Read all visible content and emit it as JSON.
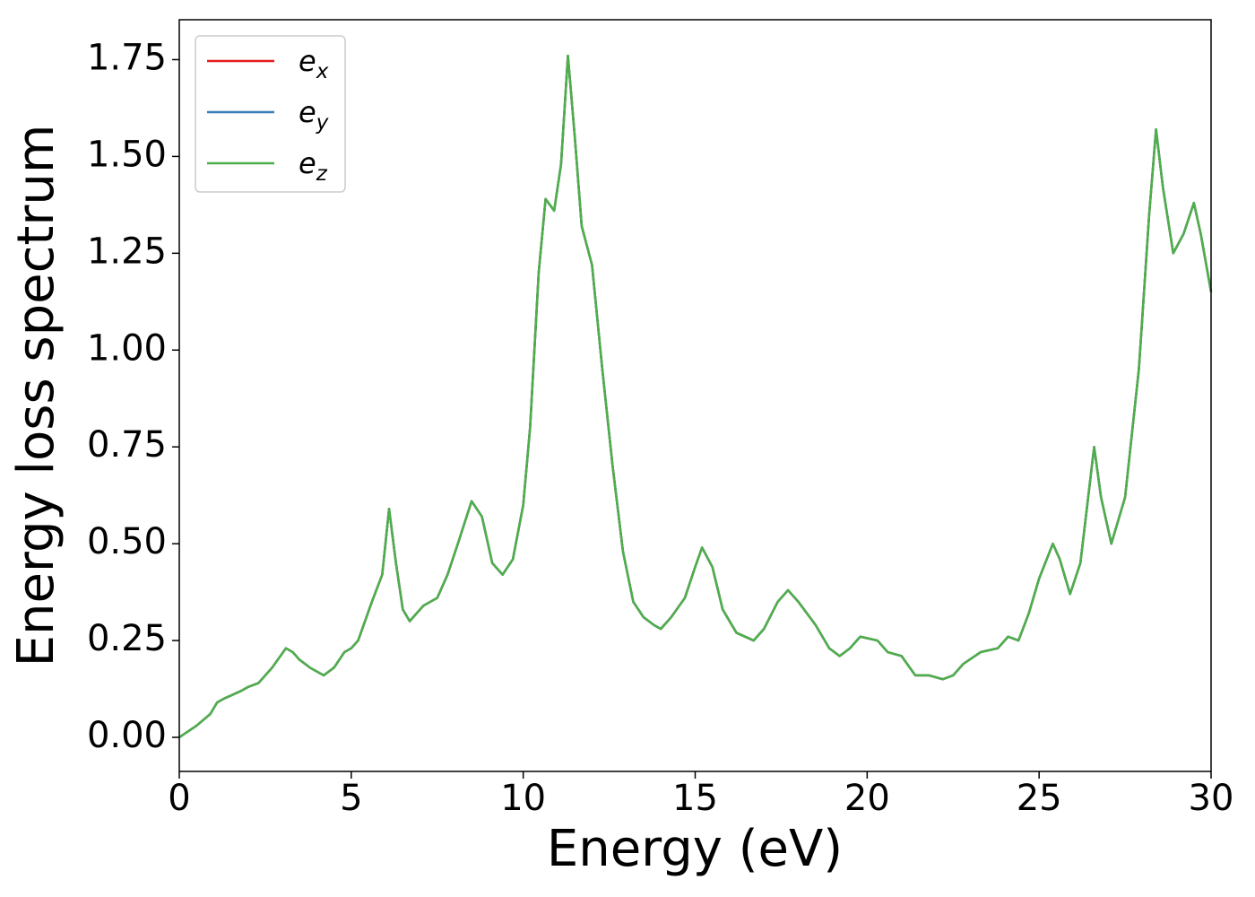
{
  "chart_data": {
    "type": "line",
    "xlabel": "Energy (eV)",
    "ylabel": "Energy loss spectrum",
    "x": [
      0,
      0.5,
      0.9,
      1.1,
      1.3,
      1.8,
      2.0,
      2.3,
      2.7,
      3.1,
      3.3,
      3.5,
      3.8,
      4.2,
      4.5,
      4.8,
      5.0,
      5.2,
      5.6,
      5.9,
      6.1,
      6.3,
      6.5,
      6.7,
      6.9,
      7.1,
      7.5,
      7.8,
      8.1,
      8.5,
      8.8,
      9.1,
      9.4,
      9.7,
      10.0,
      10.2,
      10.45,
      10.65,
      10.9,
      11.1,
      11.3,
      11.5,
      11.7,
      12.0,
      12.3,
      12.6,
      12.9,
      13.2,
      13.5,
      13.8,
      14.0,
      14.3,
      14.7,
      15.0,
      15.2,
      15.5,
      15.8,
      16.2,
      16.7,
      17.0,
      17.4,
      17.7,
      18.0,
      18.5,
      18.9,
      19.2,
      19.5,
      19.8,
      20.3,
      20.6,
      21.0,
      21.4,
      21.8,
      22.2,
      22.5,
      22.8,
      23.3,
      23.8,
      24.1,
      24.4,
      24.7,
      25.0,
      25.4,
      25.6,
      25.9,
      26.2,
      26.6,
      26.8,
      27.1,
      27.5,
      27.9,
      28.2,
      28.4,
      28.6,
      28.9,
      29.2,
      29.5,
      29.7,
      30.0
    ],
    "series": [
      {
        "name": "ex",
        "color": "#e41a1c",
        "values": [
          0.0,
          0.03,
          0.06,
          0.09,
          0.1,
          0.12,
          0.13,
          0.14,
          0.18,
          0.23,
          0.22,
          0.2,
          0.18,
          0.16,
          0.18,
          0.22,
          0.23,
          0.25,
          0.35,
          0.42,
          0.59,
          0.45,
          0.33,
          0.3,
          0.32,
          0.34,
          0.36,
          0.42,
          0.5,
          0.61,
          0.57,
          0.45,
          0.42,
          0.46,
          0.6,
          0.8,
          1.2,
          1.39,
          1.36,
          1.48,
          1.76,
          1.55,
          1.32,
          1.22,
          0.95,
          0.7,
          0.48,
          0.35,
          0.31,
          0.29,
          0.28,
          0.31,
          0.36,
          0.44,
          0.49,
          0.44,
          0.33,
          0.27,
          0.25,
          0.28,
          0.35,
          0.38,
          0.35,
          0.29,
          0.23,
          0.21,
          0.23,
          0.26,
          0.25,
          0.22,
          0.21,
          0.16,
          0.16,
          0.15,
          0.16,
          0.19,
          0.22,
          0.23,
          0.26,
          0.25,
          0.32,
          0.41,
          0.5,
          0.46,
          0.37,
          0.45,
          0.75,
          0.62,
          0.5,
          0.62,
          0.95,
          1.35,
          1.57,
          1.42,
          1.25,
          1.3,
          1.38,
          1.3,
          1.15
        ]
      },
      {
        "name": "ey",
        "color": "#377eb8",
        "values": [
          0.0,
          0.03,
          0.06,
          0.09,
          0.1,
          0.12,
          0.13,
          0.14,
          0.18,
          0.23,
          0.22,
          0.2,
          0.18,
          0.16,
          0.18,
          0.22,
          0.23,
          0.25,
          0.35,
          0.42,
          0.59,
          0.45,
          0.33,
          0.3,
          0.32,
          0.34,
          0.36,
          0.42,
          0.5,
          0.61,
          0.57,
          0.45,
          0.42,
          0.46,
          0.6,
          0.8,
          1.2,
          1.39,
          1.36,
          1.48,
          1.76,
          1.55,
          1.32,
          1.22,
          0.95,
          0.7,
          0.48,
          0.35,
          0.31,
          0.29,
          0.28,
          0.31,
          0.36,
          0.44,
          0.49,
          0.44,
          0.33,
          0.27,
          0.25,
          0.28,
          0.35,
          0.38,
          0.35,
          0.29,
          0.23,
          0.21,
          0.23,
          0.26,
          0.25,
          0.22,
          0.21,
          0.16,
          0.16,
          0.15,
          0.16,
          0.19,
          0.22,
          0.23,
          0.26,
          0.25,
          0.32,
          0.41,
          0.5,
          0.46,
          0.37,
          0.45,
          0.75,
          0.62,
          0.5,
          0.62,
          0.95,
          1.35,
          1.57,
          1.42,
          1.25,
          1.3,
          1.38,
          1.3,
          1.15
        ]
      },
      {
        "name": "ez",
        "color": "#4daf4a",
        "values": [
          0.0,
          0.03,
          0.06,
          0.09,
          0.1,
          0.12,
          0.13,
          0.14,
          0.18,
          0.23,
          0.22,
          0.2,
          0.18,
          0.16,
          0.18,
          0.22,
          0.23,
          0.25,
          0.35,
          0.42,
          0.59,
          0.45,
          0.33,
          0.3,
          0.32,
          0.34,
          0.36,
          0.42,
          0.5,
          0.61,
          0.57,
          0.45,
          0.42,
          0.46,
          0.6,
          0.8,
          1.2,
          1.39,
          1.36,
          1.48,
          1.76,
          1.55,
          1.32,
          1.22,
          0.95,
          0.7,
          0.48,
          0.35,
          0.31,
          0.29,
          0.28,
          0.31,
          0.36,
          0.44,
          0.49,
          0.44,
          0.33,
          0.27,
          0.25,
          0.28,
          0.35,
          0.38,
          0.35,
          0.29,
          0.23,
          0.21,
          0.23,
          0.26,
          0.25,
          0.22,
          0.21,
          0.16,
          0.16,
          0.15,
          0.16,
          0.19,
          0.22,
          0.23,
          0.26,
          0.25,
          0.32,
          0.41,
          0.5,
          0.46,
          0.37,
          0.45,
          0.75,
          0.62,
          0.5,
          0.62,
          0.95,
          1.35,
          1.57,
          1.42,
          1.25,
          1.3,
          1.38,
          1.3,
          1.15
        ]
      }
    ],
    "xlim": [
      0,
      30
    ],
    "xticks": [
      0,
      5,
      10,
      15,
      20,
      25,
      30
    ],
    "ylim": [
      -0.088,
      1.853
    ],
    "yticks": [
      {
        "value": 0,
        "label": "0.00"
      },
      {
        "value": 0.25,
        "label": "0.25"
      },
      {
        "value": 0.5,
        "label": "0.50"
      },
      {
        "value": 0.75,
        "label": "0.75"
      },
      {
        "value": 1,
        "label": "1.00"
      },
      {
        "value": 1.25,
        "label": "1.25"
      },
      {
        "value": 1.5,
        "label": "1.50"
      },
      {
        "value": 1.75,
        "label": "1.75"
      }
    ],
    "legend": "upper left"
  }
}
